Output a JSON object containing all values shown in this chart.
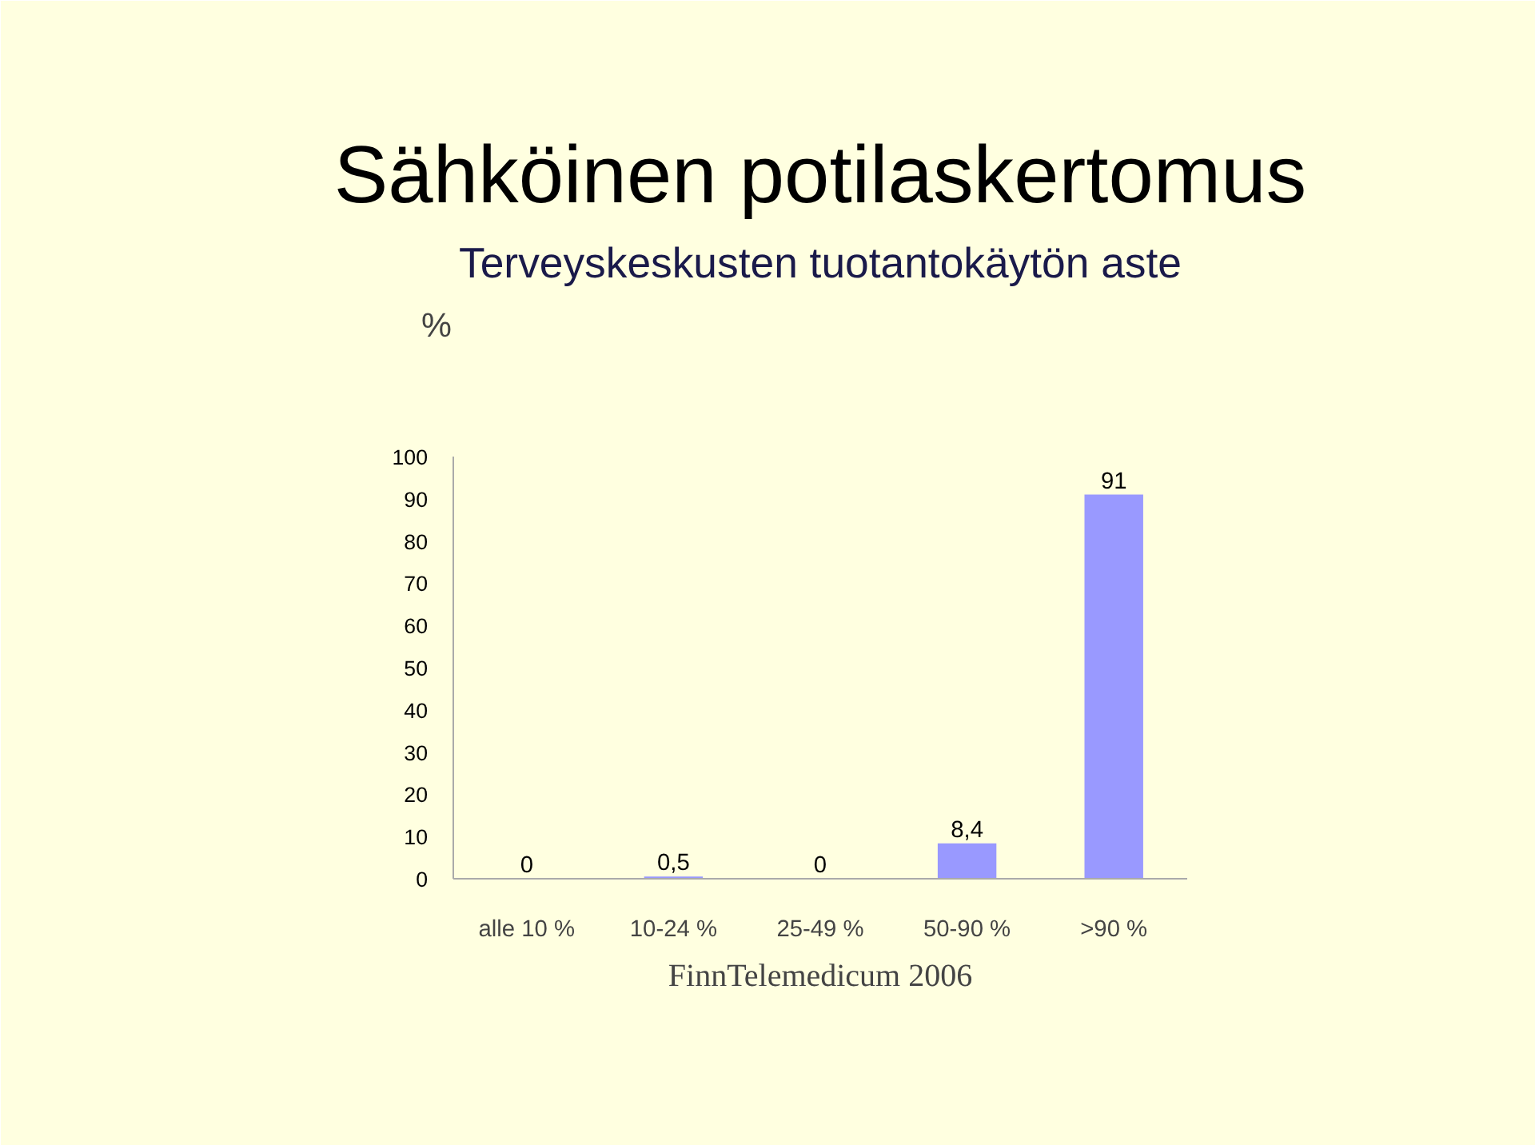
{
  "chart_data": {
    "type": "bar",
    "title": "Sähköinen potilaskertomus",
    "subtitle": "Terveyskeskusten tuotantokäytön aste",
    "ylabel": "%",
    "categories": [
      "alle 10 %",
      "10-24 %",
      "25-49 %",
      "50-90 %",
      ">90 %"
    ],
    "values": [
      0,
      0.5,
      0,
      8.4,
      91
    ],
    "value_labels": [
      "0",
      "0,5",
      "0",
      "8,4",
      "91"
    ],
    "color": "#9999ff",
    "ylim": [
      0,
      100
    ],
    "yticks": [
      0,
      10,
      20,
      30,
      40,
      50,
      60,
      70,
      80,
      90,
      100
    ],
    "grid": false,
    "legend": false,
    "annotations": [
      "FinnTelemedicum 2006"
    ]
  }
}
